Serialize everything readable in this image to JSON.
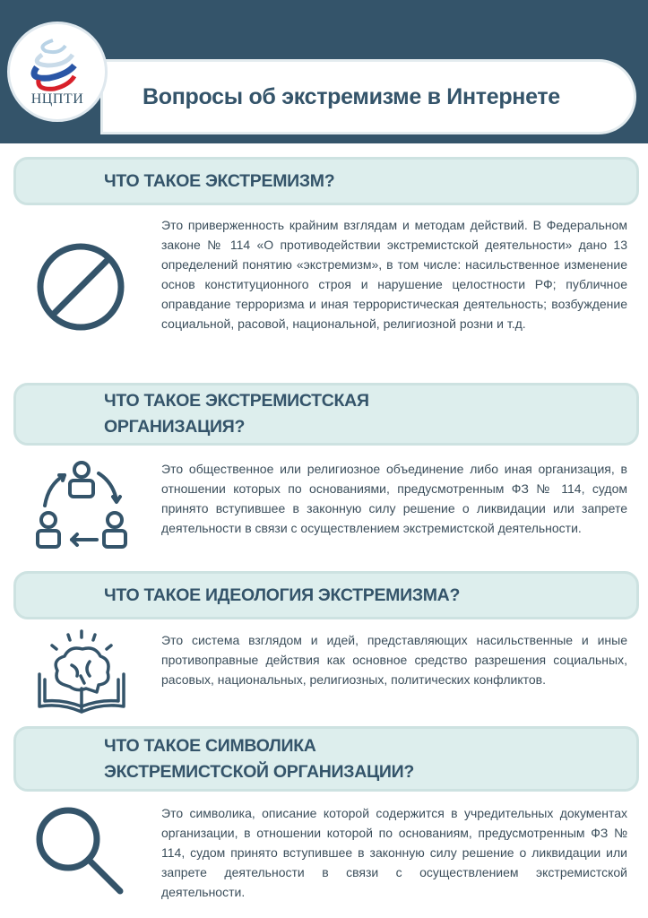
{
  "header": {
    "title": "Вопросы об экстремизме в Интернете",
    "logo_text": "НЦПТИ"
  },
  "colors": {
    "header_bg": "#34546a",
    "pill_bg": "#ddeeed",
    "text": "#3b4e5b"
  },
  "sections": [
    {
      "heading": "ЧТО ТАКОЕ ЭКСТРЕМИЗМ?",
      "icon": "prohibition-icon",
      "text": "Это приверженность крайним взглядам и методам действий. В Федеральном законе № 114 «О противодействии экстремистской деятельности» дано 13 определений понятию «экстремизм», в том числе: насильственное изменение основ конституционного строя и нарушение целостности РФ; публичное оправдание терроризма и иная террористическая деятельность; возбуждение социальной, расовой, национальной, религиозной розни и т.д."
    },
    {
      "heading": "ЧТО ТАКОЕ ЭКСТРЕМИСТСКАЯ ОРГАНИЗАЦИЯ?",
      "icon": "people-cycle-icon",
      "text": "Это общественное или религиозное объединение либо иная организация, в отношении которых по основаниями, предусмотренным ФЗ № 114, судом принято вступившее в законную силу решение о ликвидации или запрете деятельности в связи с осуществлением экстремистской деятельности."
    },
    {
      "heading": "ЧТО ТАКОЕ ИДЕОЛОГИЯ ЭКСТРЕМИЗМА?",
      "icon": "brain-book-icon",
      "text": "Это система взглядом и идей, представляющих насильственные и иные противоправные действия как основное средство разрешения социальных, расовых, национальных, религиозных, политических конфликтов."
    },
    {
      "heading": "ЧТО ТАКОЕ СИМВОЛИКА ЭКСТРЕМИСТСКОЙ ОРГАНИЗАЦИИ?",
      "icon": "magnifier-icon",
      "text": "Это символика, описание которой содержится в учредительных документах организации, в отношении которой по основаниям, предусмотренным ФЗ № 114, судом принято вступившее в законную силу решение о ликвидации или запрете деятельности в связи с осуществлением экстремистской деятельности."
    }
  ]
}
